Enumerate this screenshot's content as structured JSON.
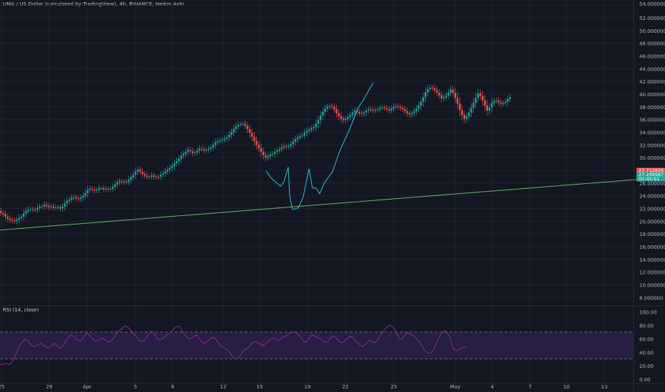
{
  "header": {
    "title": "UMA / US Dollar (calculated by TradingView), 4h, BINANCE, Heikin Ashi"
  },
  "rsi_panel": {
    "title": "RSI (14, close)"
  },
  "colors": {
    "background": "#131722",
    "grid": "#1f2330",
    "up": "#26a69a",
    "down": "#ef5350",
    "trendline": "#66bb6a",
    "drawing": "#26c6da",
    "rsi_line": "#9c27b0",
    "rsi_band": "#2a1f45",
    "axis_text": "#b2b5be"
  },
  "chart_data": [
    {
      "type": "candlestick",
      "title": "UMA / US Dollar (calculated by TradingView), 4h, BINANCE, Heikin Ashi",
      "y_axis_label": "USD",
      "y_ticks": [
        "54.000000",
        "52.000000",
        "50.000000",
        "48.000000",
        "46.000000",
        "44.000000",
        "42.000000",
        "40.000000",
        "38.000000",
        "36.000000",
        "34.000000",
        "32.000000",
        "30.000000",
        "28.000000",
        "26.000000",
        "24.000000",
        "22.000000",
        "20.000000",
        "18.000000",
        "16.000000",
        "14.000000",
        "12.000000",
        "10.000000",
        "8.000000"
      ],
      "ylim": [
        6.8,
        54.8
      ],
      "x_ticks": [
        "25",
        "29",
        "Apr",
        "5",
        "8",
        "12",
        "15",
        "19",
        "22",
        "25",
        "May",
        "4",
        "7",
        "10",
        "13"
      ],
      "price_labels": [
        "27.712826",
        "27.249587",
        "02:41:51"
      ],
      "price_label_values": [
        27.712826,
        27.249587,
        26.3
      ],
      "price_label_colors": [
        "#ef5350",
        "#26a69a",
        "#26a69a"
      ],
      "trendline": {
        "points": [
          [
            0,
            18.6
          ],
          [
            932,
            26.9
          ]
        ]
      },
      "drawing_points": [
        [
          373,
          27.9
        ],
        [
          380,
          26.8
        ],
        [
          393,
          25.5
        ],
        [
          398,
          26.2
        ],
        [
          404,
          28.5
        ],
        [
          406,
          24
        ],
        [
          410,
          21.8
        ],
        [
          418,
          22.1
        ],
        [
          425,
          23.8
        ],
        [
          433,
          28.2
        ],
        [
          438,
          25.2
        ],
        [
          443,
          25.2
        ],
        [
          448,
          24.3
        ],
        [
          455,
          26.1
        ],
        [
          466,
          27.8
        ],
        [
          476,
          31.0
        ],
        [
          489,
          34.2
        ],
        [
          501,
          37.6
        ],
        [
          512,
          39.6
        ],
        [
          523,
          41.8
        ]
      ],
      "candles_start_x": 0,
      "candle_step": 3.2,
      "candle_open_start": 21.6,
      "candle_deltas": [
        -0.3,
        -0.2,
        -0.4,
        -0.3,
        -0.2,
        -0.1,
        -0.1,
        0.2,
        0.3,
        0.2,
        0.5,
        0.4,
        0.2,
        0.1,
        -0.1,
        0.0,
        0.3,
        0.2,
        0.0,
        0.3,
        -0.2,
        -0.2,
        0.1,
        -0.2,
        0.1,
        0.0,
        -0.2,
        0.3,
        0.5,
        0.4,
        0.2,
        0.3,
        0.1,
        -0.2,
        -0.1,
        0.2,
        0.3,
        0.4,
        0.5,
        0.2,
        -0.1,
        -0.2,
        0.1,
        0.3,
        0.0,
        -0.2,
        0.1,
        -0.1,
        0.1,
        0.3,
        0.4,
        0.3,
        0.2,
        -0.1,
        -0.1,
        0.1,
        0.3,
        0.4,
        0.4,
        0.5,
        0.3,
        -0.3,
        -0.4,
        -0.2,
        -0.2,
        0.0,
        0.2,
        -0.2,
        -0.1,
        0.1,
        0.3,
        0.2,
        0.3,
        0.3,
        0.3,
        0.3,
        0.4,
        0.3,
        0.4,
        0.5,
        0.3,
        0.3,
        0.3,
        -0.2,
        -0.3,
        0.1,
        0.3,
        0.3,
        -0.1,
        -0.2,
        0.1,
        0.2,
        0.2,
        0.4,
        0.4,
        0.2,
        0.1,
        0.1,
        0.2,
        0.2,
        0.4,
        0.4,
        0.5,
        0.4,
        0.3,
        0.1,
        0.0,
        -0.3,
        -0.5,
        -0.6,
        -0.6,
        -0.7,
        -0.6,
        -0.5,
        -0.6,
        -0.5,
        -0.4,
        0.2,
        0.3,
        0.1,
        0.3,
        0.2,
        0.2,
        0.3,
        0.2,
        -0.1,
        0.1,
        0.3,
        0.4,
        0.4,
        0.3,
        0.2,
        0.1,
        0.4,
        0.3,
        0.2,
        0.2,
        0.2,
        0.5,
        0.6,
        0.7,
        0.6,
        0.5,
        0.3,
        0.1,
        -0.1,
        -0.4,
        -0.6,
        -0.5,
        -0.4,
        -0.2,
        0.2,
        0.3,
        0.3,
        0.4,
        0.3,
        -0.2,
        -0.2,
        -0.1,
        0.2,
        0.3,
        0.2,
        -0.1,
        -0.1,
        0.1,
        0.1,
        0.2,
        0.1,
        -0.1,
        -0.2,
        -0.2,
        0.3,
        0.3,
        0.1,
        -0.1,
        -0.2,
        -0.2,
        -0.3,
        -0.3,
        -0.2,
        0.2,
        0.3,
        0.4,
        0.5,
        0.6,
        0.7,
        0.8,
        0.5,
        0.2,
        -0.1,
        -0.3,
        -0.4,
        -0.4,
        -0.5,
        0.2,
        0.3,
        0.4,
        0.5,
        -0.5,
        -0.8,
        -0.9,
        -1.0,
        -0.8,
        -0.6,
        0.4,
        0.6,
        0.7,
        0.8,
        0.8,
        0.7,
        -0.4,
        -0.7,
        -0.8,
        -0.8,
        0.5,
        0.7,
        0.3,
        0.1,
        -0.3,
        -0.2,
        0.1,
        0.2,
        0.4,
        0.3
      ]
    },
    {
      "type": "line",
      "title": "RSI (14, close)",
      "y_ticks": [
        "100.00",
        "80.00",
        "60.00",
        "40.00",
        "20.00",
        "0.00"
      ],
      "ylim": [
        -2,
        108
      ],
      "band": [
        30,
        70
      ],
      "x_start": 0,
      "x_step": 3.2,
      "values": [
        22,
        22,
        23,
        23,
        22,
        24,
        30,
        38,
        46,
        52,
        56,
        60,
        58,
        54,
        50,
        48,
        50,
        52,
        53,
        50,
        48,
        47,
        48,
        51,
        53,
        49,
        46,
        47,
        52,
        58,
        62,
        66,
        64,
        61,
        58,
        57,
        60,
        64,
        68,
        66,
        62,
        58,
        56,
        57,
        60,
        61,
        58,
        56,
        55,
        58,
        62,
        68,
        72,
        74,
        77,
        79,
        77,
        74,
        70,
        66,
        61,
        58,
        56,
        57,
        61,
        66,
        71,
        70,
        65,
        60,
        58,
        60,
        63,
        66,
        68,
        71,
        74,
        77,
        79,
        77,
        70,
        65,
        62,
        60,
        61,
        63,
        66,
        62,
        57,
        54,
        54,
        57,
        60,
        62,
        61,
        57,
        52,
        49,
        47,
        45,
        42,
        38,
        33,
        30,
        31,
        34,
        40,
        44,
        45,
        48,
        52,
        55,
        56,
        54,
        52,
        50,
        52,
        55,
        58,
        60,
        61,
        59,
        57,
        60,
        63,
        64,
        66,
        68,
        70,
        70,
        68,
        65,
        61,
        56,
        55,
        59,
        64,
        66,
        64,
        62,
        61,
        58,
        56,
        55,
        58,
        62,
        64,
        63,
        58,
        55,
        54,
        57,
        60,
        63,
        63,
        60,
        56,
        53,
        50,
        49,
        52,
        55,
        58,
        56,
        54,
        57,
        62,
        67,
        72,
        76,
        79,
        80,
        78,
        74,
        66,
        60,
        60,
        64,
        68,
        69,
        66,
        65,
        62,
        58,
        54,
        48,
        43,
        40,
        38,
        40,
        44,
        52,
        60,
        66,
        70,
        72,
        68,
        62,
        50,
        44,
        42,
        45,
        46,
        47,
        48
      ]
    }
  ]
}
